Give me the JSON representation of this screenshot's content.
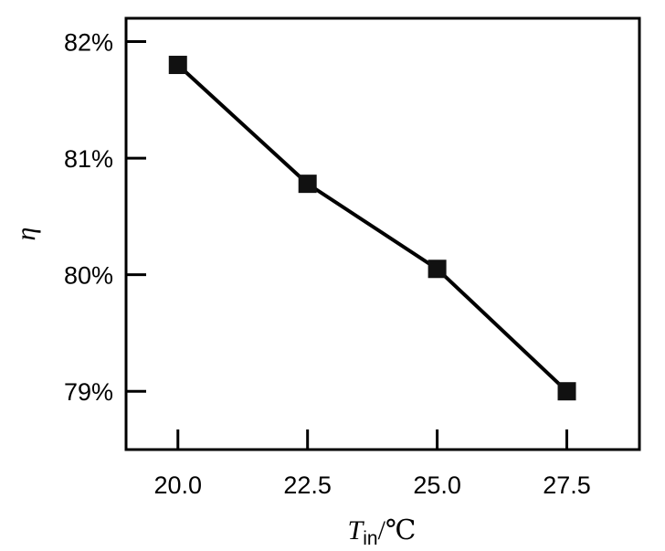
{
  "chart_data": {
    "type": "line",
    "x": [
      20.0,
      22.5,
      25.0,
      27.5
    ],
    "series": [
      {
        "values": [
          81.8,
          80.78,
          80.05,
          79.0
        ]
      }
    ],
    "x_tick_labels": [
      "20.0",
      "22.5",
      "25.0",
      "27.5"
    ],
    "y_ticks": [
      79,
      80,
      81,
      82
    ],
    "y_tick_labels": [
      "79%",
      "80%",
      "81%",
      "82%"
    ],
    "xlabel": {
      "main": "T",
      "sub": "in",
      "unit": "/℃"
    },
    "ylabel": "η",
    "xlim": [
      19.0,
      28.9
    ],
    "ylim": [
      78.5,
      82.2
    ],
    "grid": false,
    "marker": "square",
    "line_color": "#000000",
    "marker_color": "#111111"
  }
}
